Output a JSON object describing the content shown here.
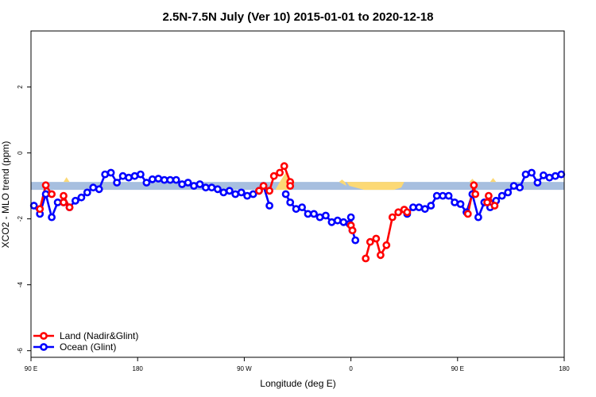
{
  "chart_data": {
    "type": "line",
    "title": "2.5N-7.5N July (Ver 10)   2015-01-01 to 2020-12-18",
    "xlabel": "Longitude (deg E)",
    "ylabel": "XCO2 - MLO trend (ppm)",
    "xlim": [
      0,
      360
    ],
    "ylim": [
      -6.2,
      3.7
    ],
    "x_ticks": [
      {
        "value": 0,
        "label": "90 E"
      },
      {
        "value": 72,
        "label": "180"
      },
      {
        "value": 144,
        "label": "90 W"
      },
      {
        "value": 216,
        "label": "0"
      },
      {
        "value": 288,
        "label": "90 E"
      },
      {
        "value": 360,
        "label": "180"
      }
    ],
    "y_ticks": [
      {
        "value": 2,
        "label": "2"
      },
      {
        "value": 0,
        "label": "0"
      },
      {
        "value": -2,
        "label": "-2"
      },
      {
        "value": -4,
        "label": "-4"
      },
      {
        "value": -6,
        "label": "-6"
      }
    ],
    "background_band": {
      "y_low": -1.12,
      "y_high": -0.88,
      "color": "#a7bfdf",
      "land_color": "#fcd975"
    },
    "legend_position": "bottom-left",
    "grid": false,
    "series": [
      {
        "name": "Land (Nadir&Glint)",
        "color": "#ff0000",
        "segments": [
          [
            [
              6,
              -1.7
            ],
            [
              10,
              -0.98
            ],
            [
              14,
              -1.25
            ]
          ],
          [
            [
              22,
              -1.5
            ],
            [
              22,
              -1.3
            ],
            [
              26,
              -1.65
            ]
          ],
          [
            [
              154,
              -1.15
            ],
            [
              157,
              -1.0
            ],
            [
              161,
              -1.15
            ],
            [
              164,
              -0.7
            ],
            [
              168,
              -0.6
            ],
            [
              171,
              -0.4
            ],
            [
              175,
              -0.88
            ],
            [
              175,
              -1.0
            ]
          ],
          [
            [
              216,
              -2.2
            ],
            [
              217,
              -2.35
            ]
          ],
          [
            [
              226,
              -3.2
            ],
            [
              229,
              -2.7
            ],
            [
              233,
              -2.6
            ],
            [
              236,
              -3.1
            ],
            [
              240,
              -2.8
            ],
            [
              244,
              -1.95
            ],
            [
              248,
              -1.8
            ],
            [
              252,
              -1.72
            ],
            [
              254,
              -1.8
            ]
          ],
          [
            [
              295,
              -1.85
            ],
            [
              299,
              -0.98
            ],
            [
              300,
              -1.25
            ]
          ],
          [
            [
              308,
              -1.5
            ],
            [
              309,
              -1.3
            ],
            [
              313,
              -1.6
            ]
          ]
        ]
      },
      {
        "name": "Ocean (Glint)",
        "color": "#0000ff",
        "segments": [
          [
            [
              2,
              -1.6
            ],
            [
              6,
              -1.85
            ],
            [
              10,
              -1.25
            ],
            [
              14,
              -1.95
            ],
            [
              18,
              -1.5
            ],
            [
              22,
              -1.5
            ],
            [
              26,
              -1.65
            ],
            [
              30,
              -1.45
            ],
            [
              34,
              -1.35
            ],
            [
              38,
              -1.2
            ],
            [
              42,
              -1.05
            ],
            [
              46,
              -1.1
            ],
            [
              50,
              -0.65
            ],
            [
              54,
              -0.6
            ],
            [
              58,
              -0.9
            ],
            [
              62,
              -0.7
            ],
            [
              66,
              -0.75
            ],
            [
              70,
              -0.7
            ],
            [
              74,
              -0.65
            ],
            [
              78,
              -0.9
            ],
            [
              82,
              -0.8
            ],
            [
              86,
              -0.78
            ],
            [
              90,
              -0.82
            ],
            [
              94,
              -0.82
            ],
            [
              98,
              -0.82
            ],
            [
              102,
              -0.95
            ],
            [
              106,
              -0.9
            ],
            [
              110,
              -1.0
            ],
            [
              114,
              -0.95
            ],
            [
              118,
              -1.05
            ],
            [
              122,
              -1.05
            ],
            [
              126,
              -1.1
            ],
            [
              130,
              -1.2
            ],
            [
              134,
              -1.15
            ],
            [
              138,
              -1.25
            ],
            [
              142,
              -1.2
            ],
            [
              146,
              -1.3
            ],
            [
              150,
              -1.25
            ],
            [
              154,
              -1.15
            ],
            [
              157,
              -1.0
            ],
            [
              161,
              -1.6
            ]
          ],
          [
            [
              172,
              -1.25
            ],
            [
              175,
              -1.5
            ],
            [
              179,
              -1.7
            ],
            [
              183,
              -1.65
            ],
            [
              187,
              -1.85
            ],
            [
              191,
              -1.85
            ],
            [
              195,
              -1.95
            ],
            [
              199,
              -1.9
            ],
            [
              203,
              -2.1
            ],
            [
              207,
              -2.05
            ],
            [
              211,
              -2.1
            ],
            [
              215,
              -2.15
            ],
            [
              216,
              -1.95
            ],
            [
              217,
              -2.35
            ],
            [
              219,
              -2.65
            ]
          ],
          [
            [
              254,
              -1.85
            ],
            [
              258,
              -1.65
            ],
            [
              262,
              -1.65
            ],
            [
              266,
              -1.7
            ],
            [
              270,
              -1.6
            ],
            [
              274,
              -1.3
            ],
            [
              278,
              -1.3
            ],
            [
              282,
              -1.3
            ],
            [
              286,
              -1.5
            ],
            [
              290,
              -1.55
            ],
            [
              294,
              -1.8
            ],
            [
              298,
              -1.25
            ],
            [
              302,
              -1.95
            ],
            [
              306,
              -1.5
            ],
            [
              310,
              -1.65
            ],
            [
              314,
              -1.45
            ],
            [
              318,
              -1.3
            ],
            [
              322,
              -1.2
            ],
            [
              326,
              -1.0
            ],
            [
              330,
              -1.05
            ],
            [
              334,
              -0.65
            ],
            [
              338,
              -0.6
            ],
            [
              342,
              -0.9
            ],
            [
              346,
              -0.68
            ],
            [
              350,
              -0.75
            ],
            [
              354,
              -0.7
            ],
            [
              358,
              -0.65
            ]
          ]
        ]
      }
    ]
  }
}
